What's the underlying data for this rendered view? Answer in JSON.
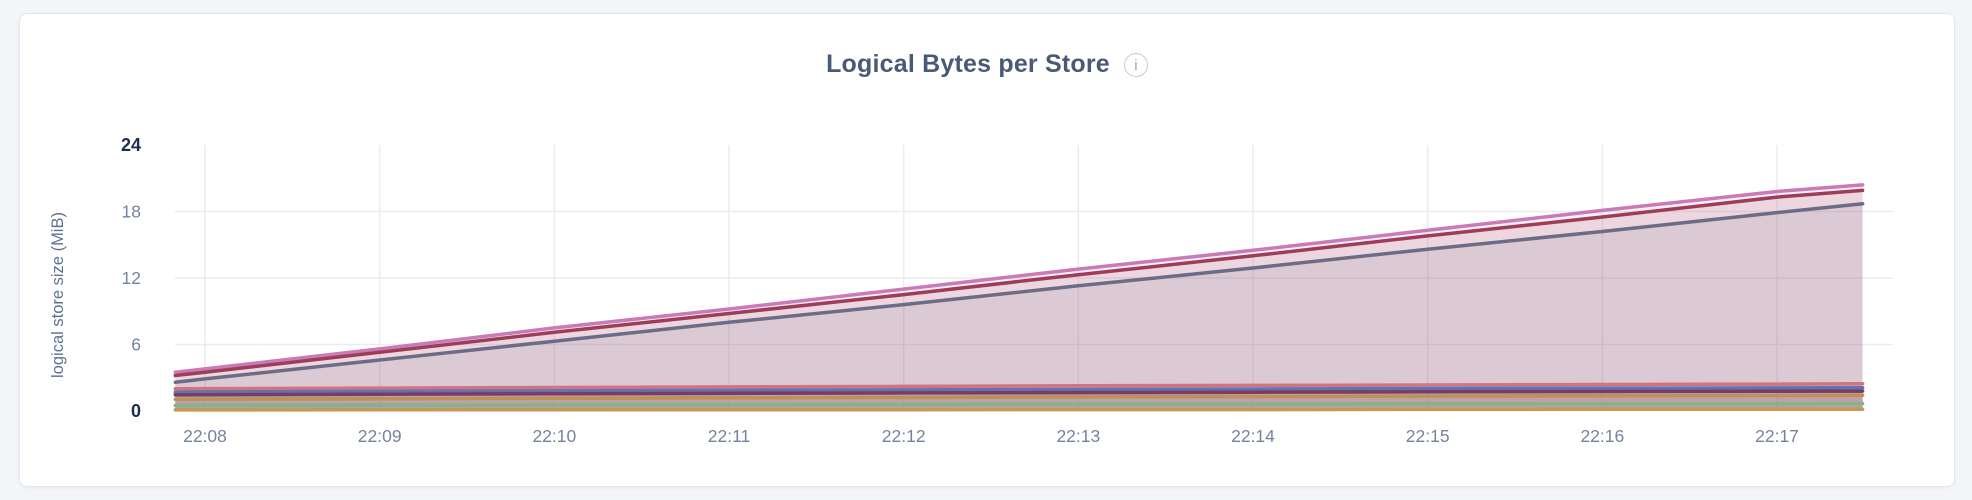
{
  "header": {
    "title": "Logical Bytes per Store",
    "info_icon_glyph": "i"
  },
  "chart_data": {
    "type": "area",
    "title": "Logical Bytes per Store",
    "xlabel": "",
    "ylabel": "logical store size (MiB)",
    "ylim": [
      0,
      24
    ],
    "yticks": [
      0,
      6,
      12,
      18,
      24
    ],
    "yticks_emphasized": [
      0,
      24
    ],
    "ygrid_at": [
      6,
      12,
      18
    ],
    "grid": true,
    "legend": "none",
    "x_tick_labels": [
      "22:08",
      "22:09",
      "22:10",
      "22:11",
      "22:12",
      "22:13",
      "22:14",
      "22:15",
      "22:16",
      "22:17"
    ],
    "x_minutes": [
      -0.17,
      0,
      1,
      2,
      3,
      4,
      5,
      6,
      7,
      8,
      9,
      9.49
    ],
    "fill_opacity": 0.13,
    "series": [
      {
        "id": "store-pink",
        "color": "#c97ab8",
        "values": [
          3.5,
          3.8,
          5.6,
          7.5,
          9.2,
          11.0,
          12.8,
          14.5,
          16.3,
          18.1,
          19.8,
          20.4
        ]
      },
      {
        "id": "store-crimson",
        "color": "#9e3d58",
        "values": [
          3.2,
          3.5,
          5.3,
          7.1,
          8.8,
          10.5,
          12.3,
          14.0,
          15.8,
          17.5,
          19.3,
          19.9
        ]
      },
      {
        "id": "store-slate",
        "color": "#6d6c86",
        "values": [
          2.6,
          2.9,
          4.6,
          6.3,
          8.0,
          9.6,
          11.3,
          12.9,
          14.6,
          16.2,
          17.9,
          18.7
        ]
      },
      {
        "id": "store-rose",
        "color": "#d2737f",
        "values": [
          2.0,
          2.02,
          2.07,
          2.12,
          2.17,
          2.22,
          2.27,
          2.31,
          2.35,
          2.39,
          2.43,
          2.45
        ]
      },
      {
        "id": "store-indigo",
        "color": "#5f74b3",
        "values": [
          1.7,
          1.72,
          1.77,
          1.81,
          1.86,
          1.9,
          1.94,
          1.98,
          2.02,
          2.05,
          2.08,
          2.1
        ]
      },
      {
        "id": "store-plum",
        "color": "#7b3b64",
        "values": [
          1.45,
          1.47,
          1.51,
          1.55,
          1.59,
          1.63,
          1.66,
          1.7,
          1.73,
          1.76,
          1.79,
          1.8
        ]
      },
      {
        "id": "store-camel",
        "color": "#bd9253",
        "values": [
          1.05,
          1.07,
          1.11,
          1.15,
          1.19,
          1.23,
          1.27,
          1.31,
          1.34,
          1.37,
          1.4,
          1.42
        ]
      },
      {
        "id": "store-green",
        "color": "#83b28b",
        "values": [
          0.5,
          0.51,
          0.53,
          0.55,
          0.57,
          0.59,
          0.61,
          0.62,
          0.64,
          0.65,
          0.67,
          0.68
        ]
      },
      {
        "id": "store-gold",
        "color": "#c59a58",
        "values": [
          0.1,
          0.1,
          0.11,
          0.11,
          0.12,
          0.12,
          0.13,
          0.13,
          0.14,
          0.15,
          0.15,
          0.16
        ]
      }
    ],
    "colors": {
      "grid": "#ececef",
      "tick_text": "#74839f",
      "tick_text_strong": "#1e2d4e",
      "axis_label": "#5e7193",
      "title": "#495a77",
      "card_background": "#ffffff",
      "page_background": "#f3f5f9"
    }
  }
}
